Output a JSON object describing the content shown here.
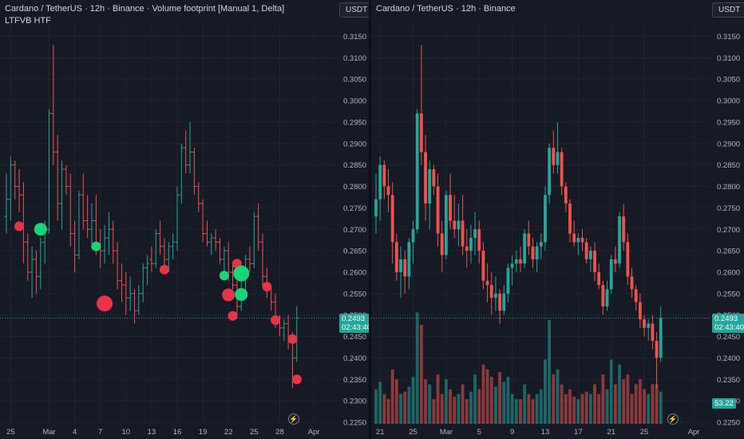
{
  "left": {
    "title": "Cardano / TetherUS · 12h · Binance · Volume footprint [Manual 1, Delta]",
    "subtitle": "LTFVB HTF",
    "currency_button": "USDT",
    "price_label": "0.2493",
    "countdown_label": "02:43:40"
  },
  "right": {
    "title": "Cardano / TetherUS · 12h · Binance",
    "currency_button": "USDT",
    "price_label": "0.2493",
    "countdown_label": "02:43:40",
    "volume_label": "53.22"
  },
  "colors": {
    "up": "#26a69a",
    "down": "#ef5350",
    "bubble_up": "#19d57a",
    "bubble_down": "#e8344a",
    "background": "#161a25",
    "grid": "#1f2330"
  },
  "icons": [
    "lightning-icon"
  ],
  "chart_data": [
    {
      "type": "candlestick",
      "title": "Cardano / TetherUS · 12h · Binance · Volume footprint [Manual 1, Delta]",
      "y_ticks": [
        "0.3150",
        "0.3100",
        "0.3050",
        "0.3000",
        "0.2950",
        "0.2900",
        "0.2850",
        "0.2800",
        "0.2750",
        "0.2700",
        "0.2650",
        "0.2600",
        "0.2550",
        "0.2500",
        "0.2450",
        "0.2400",
        "0.2350",
        "0.2300",
        "0.2250"
      ],
      "x_ticks": [
        {
          "label": "25",
          "i": 1
        },
        {
          "label": "Mar",
          "i": 10
        },
        {
          "label": "4",
          "i": 16
        },
        {
          "label": "7",
          "i": 22
        },
        {
          "label": "10",
          "i": 28
        },
        {
          "label": "13",
          "i": 34
        },
        {
          "label": "16",
          "i": 40
        },
        {
          "label": "19",
          "i": 46
        },
        {
          "label": "22",
          "i": 52
        },
        {
          "label": "25",
          "i": 58
        },
        {
          "label": "28",
          "i": 64
        },
        {
          "label": "Apr",
          "i": 72
        }
      ],
      "ylim": [
        0.2248,
        0.3175
      ],
      "last_price": 0.2493,
      "bubbles": [
        {
          "i": 3,
          "price": 0.2707,
          "size": "small",
          "side": "down"
        },
        {
          "i": 8,
          "price": 0.27,
          "size": "medium",
          "side": "up"
        },
        {
          "i": 21,
          "price": 0.266,
          "size": "small",
          "side": "up"
        },
        {
          "i": 23,
          "price": 0.2527,
          "size": "large",
          "side": "down"
        },
        {
          "i": 37,
          "price": 0.2606,
          "size": "small",
          "side": "down"
        },
        {
          "i": 51,
          "price": 0.2592,
          "size": "small",
          "side": "up"
        },
        {
          "i": 52,
          "price": 0.2547,
          "size": "medium",
          "side": "down"
        },
        {
          "i": 53,
          "price": 0.2498,
          "size": "small",
          "side": "down"
        },
        {
          "i": 54,
          "price": 0.262,
          "size": "small",
          "side": "down"
        },
        {
          "i": 55,
          "price": 0.2597,
          "size": "large",
          "side": "up"
        },
        {
          "i": 55,
          "price": 0.2548,
          "size": "medium",
          "side": "up"
        },
        {
          "i": 61,
          "price": 0.2566,
          "size": "small",
          "side": "down"
        },
        {
          "i": 63,
          "price": 0.2488,
          "size": "small",
          "side": "down"
        },
        {
          "i": 67,
          "price": 0.2444,
          "size": "small",
          "side": "down"
        },
        {
          "i": 68,
          "price": 0.235,
          "size": "small",
          "side": "down"
        }
      ]
    },
    {
      "type": "candlestick",
      "title": "Cardano / TetherUS · 12h · Binance",
      "y_ticks": [
        "0.3150",
        "0.3100",
        "0.3050",
        "0.3000",
        "0.2950",
        "0.2900",
        "0.2850",
        "0.2800",
        "0.2750",
        "0.2700",
        "0.2650",
        "0.2600",
        "0.2550",
        "0.2500",
        "0.2450",
        "0.2400",
        "0.2350",
        "0.2300",
        "0.2250"
      ],
      "x_ticks": [
        {
          "label": "21",
          "i": 1
        },
        {
          "label": "25",
          "i": 9
        },
        {
          "label": "Mar",
          "i": 17
        },
        {
          "label": "5",
          "i": 25
        },
        {
          "label": "9",
          "i": 33
        },
        {
          "label": "13",
          "i": 41
        },
        {
          "label": "17",
          "i": 49
        },
        {
          "label": "21",
          "i": 57
        },
        {
          "label": "25",
          "i": 65
        },
        {
          "label": "Apr",
          "i": 77
        }
      ],
      "ylim": [
        0.2248,
        0.3175
      ],
      "last_price": 0.2493,
      "volume_last": 53.22,
      "ohlc": [
        [
          0.273,
          0.283,
          0.269,
          0.277
        ],
        [
          0.277,
          0.287,
          0.272,
          0.285
        ],
        [
          0.285,
          0.286,
          0.277,
          0.28
        ],
        [
          0.28,
          0.284,
          0.274,
          0.278
        ],
        [
          0.278,
          0.281,
          0.262,
          0.267
        ],
        [
          0.267,
          0.269,
          0.258,
          0.26
        ],
        [
          0.26,
          0.266,
          0.254,
          0.263
        ],
        [
          0.263,
          0.265,
          0.255,
          0.259
        ],
        [
          0.259,
          0.268,
          0.256,
          0.267
        ],
        [
          0.267,
          0.272,
          0.262,
          0.27
        ],
        [
          0.27,
          0.298,
          0.269,
          0.297
        ],
        [
          0.297,
          0.313,
          0.285,
          0.288
        ],
        [
          0.288,
          0.292,
          0.272,
          0.276
        ],
        [
          0.276,
          0.286,
          0.27,
          0.284
        ],
        [
          0.284,
          0.285,
          0.278,
          0.28
        ],
        [
          0.28,
          0.283,
          0.266,
          0.269
        ],
        [
          0.269,
          0.272,
          0.26,
          0.264
        ],
        [
          0.264,
          0.279,
          0.263,
          0.278
        ],
        [
          0.278,
          0.283,
          0.27,
          0.272
        ],
        [
          0.272,
          0.278,
          0.268,
          0.27
        ],
        [
          0.27,
          0.276,
          0.266,
          0.272
        ],
        [
          0.272,
          0.278,
          0.264,
          0.266
        ],
        [
          0.266,
          0.27,
          0.261,
          0.265
        ],
        [
          0.265,
          0.271,
          0.262,
          0.268
        ],
        [
          0.268,
          0.274,
          0.264,
          0.27
        ],
        [
          0.27,
          0.272,
          0.262,
          0.265
        ],
        [
          0.265,
          0.267,
          0.256,
          0.258
        ],
        [
          0.258,
          0.262,
          0.253,
          0.257
        ],
        [
          0.257,
          0.26,
          0.25,
          0.254
        ],
        [
          0.254,
          0.259,
          0.251,
          0.255
        ],
        [
          0.255,
          0.256,
          0.248,
          0.251
        ],
        [
          0.251,
          0.257,
          0.25,
          0.255
        ],
        [
          0.255,
          0.262,
          0.253,
          0.261
        ],
        [
          0.261,
          0.264,
          0.257,
          0.262
        ],
        [
          0.262,
          0.265,
          0.26,
          0.263
        ],
        [
          0.263,
          0.266,
          0.26,
          0.262
        ],
        [
          0.262,
          0.27,
          0.261,
          0.269
        ],
        [
          0.269,
          0.272,
          0.264,
          0.266
        ],
        [
          0.266,
          0.268,
          0.261,
          0.263
        ],
        [
          0.263,
          0.267,
          0.26,
          0.266
        ],
        [
          0.266,
          0.269,
          0.263,
          0.267
        ],
        [
          0.267,
          0.28,
          0.265,
          0.278
        ],
        [
          0.278,
          0.29,
          0.276,
          0.289
        ],
        [
          0.289,
          0.293,
          0.283,
          0.285
        ],
        [
          0.285,
          0.295,
          0.283,
          0.288
        ],
        [
          0.288,
          0.289,
          0.278,
          0.28
        ],
        [
          0.28,
          0.281,
          0.274,
          0.276
        ],
        [
          0.276,
          0.277,
          0.267,
          0.269
        ],
        [
          0.269,
          0.272,
          0.266,
          0.267
        ],
        [
          0.267,
          0.269,
          0.264,
          0.268
        ],
        [
          0.268,
          0.27,
          0.265,
          0.267
        ],
        [
          0.267,
          0.268,
          0.262,
          0.263
        ],
        [
          0.263,
          0.266,
          0.26,
          0.265
        ],
        [
          0.265,
          0.267,
          0.258,
          0.26
        ],
        [
          0.26,
          0.262,
          0.256,
          0.257
        ],
        [
          0.257,
          0.258,
          0.25,
          0.252
        ],
        [
          0.252,
          0.258,
          0.251,
          0.256
        ],
        [
          0.256,
          0.264,
          0.255,
          0.263
        ],
        [
          0.263,
          0.266,
          0.26,
          0.262
        ],
        [
          0.262,
          0.274,
          0.261,
          0.273
        ],
        [
          0.273,
          0.276,
          0.265,
          0.267
        ],
        [
          0.267,
          0.269,
          0.257,
          0.259
        ],
        [
          0.259,
          0.261,
          0.254,
          0.256
        ],
        [
          0.256,
          0.257,
          0.251,
          0.253
        ],
        [
          0.253,
          0.255,
          0.247,
          0.249
        ],
        [
          0.249,
          0.25,
          0.245,
          0.247
        ],
        [
          0.247,
          0.249,
          0.244,
          0.248
        ],
        [
          0.248,
          0.25,
          0.242,
          0.244
        ],
        [
          0.244,
          0.246,
          0.233,
          0.24
        ],
        [
          0.24,
          0.252,
          0.239,
          0.2493
        ]
      ],
      "volume": [
        0.14,
        0.17,
        0.12,
        0.1,
        0.22,
        0.18,
        0.12,
        0.13,
        0.15,
        0.19,
        0.45,
        0.4,
        0.18,
        0.16,
        0.1,
        0.2,
        0.12,
        0.18,
        0.14,
        0.11,
        0.12,
        0.16,
        0.1,
        0.13,
        0.2,
        0.14,
        0.24,
        0.22,
        0.19,
        0.15,
        0.21,
        0.17,
        0.19,
        0.12,
        0.1,
        0.1,
        0.16,
        0.12,
        0.1,
        0.12,
        0.14,
        0.26,
        0.42,
        0.2,
        0.22,
        0.16,
        0.12,
        0.14,
        0.11,
        0.1,
        0.12,
        0.13,
        0.12,
        0.16,
        0.12,
        0.2,
        0.14,
        0.26,
        0.16,
        0.24,
        0.18,
        0.2,
        0.12,
        0.16,
        0.18,
        0.14,
        0.12,
        0.16,
        0.16,
        0.13
      ]
    }
  ]
}
